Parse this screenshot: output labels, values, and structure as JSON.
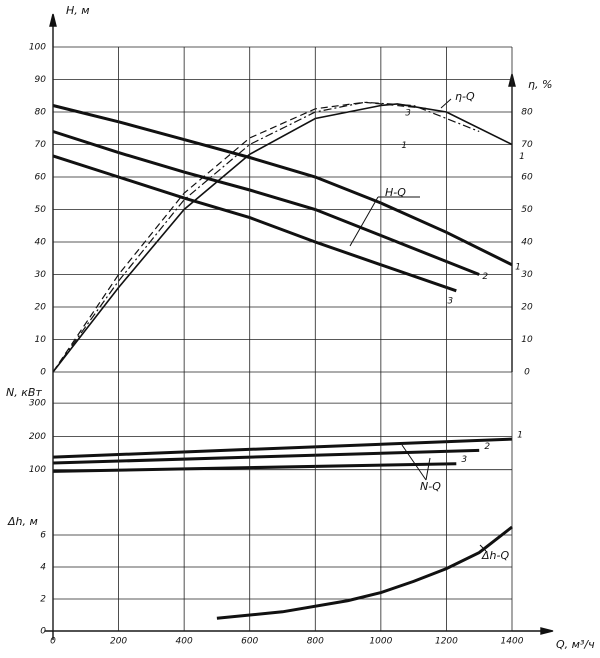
{
  "chart_data": [
    {
      "type": "line",
      "ylabel": "H, м",
      "y2label": "η, %",
      "xlim": [
        0,
        1400
      ],
      "ylim": [
        0,
        100
      ],
      "yticks": [
        0,
        10,
        20,
        30,
        40,
        50,
        60,
        70,
        80,
        90,
        100
      ],
      "y2lim": [
        0,
        100
      ],
      "y2ticks": [
        0,
        10,
        20,
        30,
        40,
        50,
        60,
        70,
        80
      ],
      "grid": true,
      "series": [
        {
          "name": "1",
          "color": "#111",
          "linewidth": 3,
          "dash": "solid",
          "x": [
            0,
            200,
            400,
            600,
            800,
            1000,
            1200,
            1400
          ],
          "values": [
            82,
            77,
            71.5,
            66,
            60,
            52,
            43,
            33
          ]
        },
        {
          "name": "2",
          "color": "#111",
          "linewidth": 3,
          "dash": "solid",
          "x": [
            0,
            200,
            400,
            600,
            800,
            1000,
            1200,
            1300
          ],
          "values": [
            74,
            67.5,
            61.5,
            56,
            50,
            42,
            34,
            30
          ]
        },
        {
          "name": "3",
          "color": "#111",
          "linewidth": 3,
          "dash": "solid",
          "x": [
            0,
            200,
            400,
            600,
            800,
            1000,
            1230
          ],
          "values": [
            66.5,
            60,
            53.5,
            47.5,
            40,
            33,
            25
          ]
        },
        {
          "name": "1",
          "axis": "y2",
          "color": "#111",
          "linewidth": 1.6,
          "dash": "solid",
          "x": [
            0,
            200,
            400,
            600,
            800,
            1000,
            1050,
            1200,
            1400
          ],
          "values": [
            0,
            26,
            50,
            67,
            78,
            82,
            82.5,
            80,
            70
          ]
        },
        {
          "name": "1",
          "axis": "y2",
          "color": "#111",
          "linewidth": 1.2,
          "dash": "dashdot",
          "x": [
            0,
            200,
            400,
            600,
            800,
            950,
            1100,
            1300
          ],
          "values": [
            0,
            28,
            53,
            70,
            80,
            83,
            82,
            74
          ]
        },
        {
          "name": "3",
          "axis": "y2",
          "color": "#111",
          "linewidth": 1.2,
          "dash": "dashed",
          "x": [
            0,
            200,
            400,
            600,
            800,
            950,
            1150
          ],
          "values": [
            0,
            30,
            55,
            72,
            81,
            83,
            81
          ]
        }
      ],
      "annotations": [
        "H-Q",
        "η-Q"
      ]
    },
    {
      "type": "line",
      "ylabel": "N, кВт",
      "xlim": [
        0,
        1400
      ],
      "ylim": [
        0,
        340
      ],
      "yticks": [
        100,
        200,
        300
      ],
      "grid": true,
      "series": [
        {
          "name": "1",
          "color": "#111",
          "linewidth": 3,
          "dash": "solid",
          "x": [
            0,
            1400
          ],
          "values": [
            138,
            192
          ]
        },
        {
          "name": "2",
          "color": "#111",
          "linewidth": 3,
          "dash": "solid",
          "x": [
            0,
            1300
          ],
          "values": [
            120,
            158
          ]
        },
        {
          "name": "3",
          "color": "#111",
          "linewidth": 3,
          "dash": "solid",
          "x": [
            0,
            1230
          ],
          "values": [
            95,
            118
          ]
        }
      ],
      "annotations": [
        "N-Q"
      ]
    },
    {
      "type": "line",
      "ylabel": "Δh, м",
      "xlabel": "Q, м³/ч",
      "xlim": [
        0,
        1400
      ],
      "ylim": [
        0,
        8
      ],
      "yticks": [
        0,
        2,
        4,
        6
      ],
      "xticks": [
        0,
        200,
        400,
        600,
        800,
        1000,
        1200,
        1400
      ],
      "grid": true,
      "series": [
        {
          "color": "#111",
          "linewidth": 3,
          "dash": "solid",
          "x": [
            500,
            700,
            900,
            1000,
            1100,
            1200,
            1300,
            1400
          ],
          "values": [
            0.8,
            1.2,
            1.9,
            2.4,
            3.1,
            3.9,
            4.9,
            6.5
          ]
        }
      ],
      "annotations": [
        "Δh-Q"
      ]
    }
  ]
}
